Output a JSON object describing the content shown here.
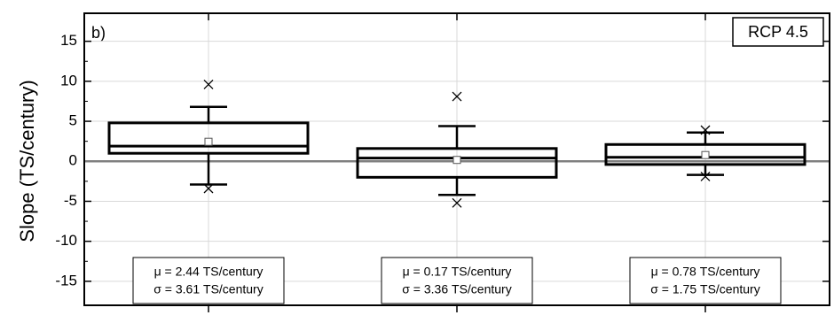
{
  "chart_data": {
    "type": "box",
    "panel_label": "b)",
    "legend_label": "RCP 4.5",
    "ylabel": "Slope (TS/century)",
    "categories": [
      null,
      null,
      null
    ],
    "ylim": [
      -18,
      18.5
    ],
    "yticks": [
      -15,
      -10,
      -5,
      0,
      5,
      10,
      15
    ],
    "grid": true,
    "color": "#000000",
    "boxes": [
      {
        "whisker_low": -2.9,
        "q1": 1.0,
        "median": 1.9,
        "q3": 4.8,
        "whisker_high": 6.8,
        "mean": 2.44,
        "outliers": [
          9.6,
          -3.4
        ],
        "annotation": [
          "μ = 2.44 TS/century",
          "σ = 3.61 TS/century"
        ]
      },
      {
        "whisker_low": -4.2,
        "q1": -2.0,
        "median": 0.4,
        "q3": 1.6,
        "whisker_high": 4.4,
        "mean": 0.17,
        "outliers": [
          8.1,
          -5.2
        ],
        "annotation": [
          "μ = 0.17 TS/century",
          "σ = 3.36 TS/century"
        ]
      },
      {
        "whisker_low": -1.7,
        "q1": -0.4,
        "median": 0.5,
        "q3": 2.1,
        "whisker_high": 3.6,
        "mean": 0.78,
        "outliers": [
          3.9,
          -1.9
        ],
        "annotation": [
          "μ = 0.78 TS/century",
          "σ = 1.75 TS/century"
        ]
      }
    ]
  }
}
